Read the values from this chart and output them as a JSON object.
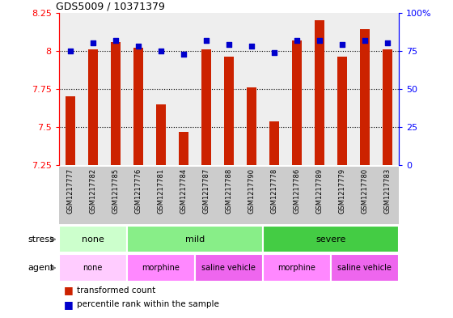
{
  "title": "GDS5009 / 10371379",
  "samples": [
    "GSM1217777",
    "GSM1217782",
    "GSM1217785",
    "GSM1217776",
    "GSM1217781",
    "GSM1217784",
    "GSM1217787",
    "GSM1217788",
    "GSM1217790",
    "GSM1217778",
    "GSM1217786",
    "GSM1217789",
    "GSM1217779",
    "GSM1217780",
    "GSM1217783"
  ],
  "bar_values": [
    7.7,
    8.01,
    8.06,
    8.02,
    7.65,
    7.47,
    8.01,
    7.96,
    7.76,
    7.54,
    8.07,
    8.2,
    7.96,
    8.14,
    8.01
  ],
  "dot_values": [
    75,
    80,
    82,
    78,
    75,
    73,
    82,
    79,
    78,
    74,
    82,
    82,
    79,
    82,
    80
  ],
  "bar_color": "#cc2200",
  "dot_color": "#0000cc",
  "ylim_left": [
    7.25,
    8.25
  ],
  "ylim_right": [
    0,
    100
  ],
  "yticks_left": [
    7.25,
    7.5,
    7.75,
    8.0,
    8.25
  ],
  "yticks_right": [
    0,
    25,
    50,
    75,
    100
  ],
  "ytick_labels_left": [
    "7.25",
    "7.5",
    "7.75",
    "8",
    "8.25"
  ],
  "ytick_labels_right": [
    "0",
    "25",
    "50",
    "75",
    "100%"
  ],
  "hlines": [
    7.5,
    7.75,
    8.0
  ],
  "stress_groups": [
    {
      "label": "none",
      "start": 0,
      "end": 3,
      "color": "#ccffcc"
    },
    {
      "label": "mild",
      "start": 3,
      "end": 9,
      "color": "#88ee88"
    },
    {
      "label": "severe",
      "start": 9,
      "end": 15,
      "color": "#44cc44"
    }
  ],
  "agent_groups": [
    {
      "label": "none",
      "start": 0,
      "end": 3,
      "color": "#ffccff"
    },
    {
      "label": "morphine",
      "start": 3,
      "end": 6,
      "color": "#ff88ff"
    },
    {
      "label": "saline vehicle",
      "start": 6,
      "end": 9,
      "color": "#ee66ee"
    },
    {
      "label": "morphine",
      "start": 9,
      "end": 12,
      "color": "#ff88ff"
    },
    {
      "label": "saline vehicle",
      "start": 12,
      "end": 15,
      "color": "#ee66ee"
    }
  ],
  "stress_label": "stress",
  "agent_label": "agent",
  "legend_bar_label": "transformed count",
  "legend_dot_label": "percentile rank within the sample",
  "plot_bg_color": "#eeeeee",
  "tick_bg_color": "#cccccc",
  "bar_width": 0.45
}
